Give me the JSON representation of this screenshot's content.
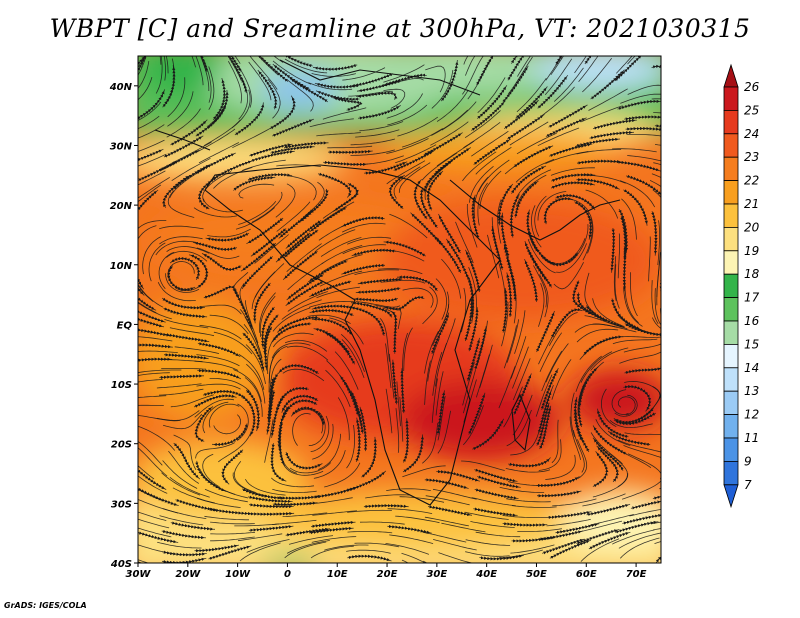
{
  "title": "WBPT [C] and Sreamline at 300hPa, VT: 2021030315",
  "credit": "GrADS: IGES/COLA",
  "map": {
    "lat_labels": [
      "40N",
      "30N",
      "20N",
      "10N",
      "EQ",
      "10S",
      "20S",
      "30S",
      "40S"
    ],
    "lon_labels": [
      "30W",
      "20W",
      "10W",
      "0",
      "10E",
      "20E",
      "30E",
      "40E",
      "50E",
      "60E",
      "70E"
    ],
    "lat_range": [
      -40,
      45
    ],
    "lon_range": [
      -30,
      75
    ]
  },
  "colorbar": {
    "labels": [
      "26",
      "25",
      "24",
      "23",
      "22",
      "21",
      "20",
      "19",
      "18",
      "17",
      "16",
      "15",
      "14",
      "13",
      "12",
      "11",
      "9",
      "7"
    ],
    "colors": [
      "#a50f15",
      "#cb181d",
      "#e63a1e",
      "#f05a1e",
      "#f57d1e",
      "#f89f1f",
      "#fcc13d",
      "#fde07f",
      "#fdf4b4",
      "#33b44a",
      "#5dc25d",
      "#a6dca6",
      "#e6f5ff",
      "#bfe1fb",
      "#9bcbf5",
      "#71b1ee",
      "#4b93e6",
      "#2f74dc",
      "#1f5fd6"
    ]
  }
}
